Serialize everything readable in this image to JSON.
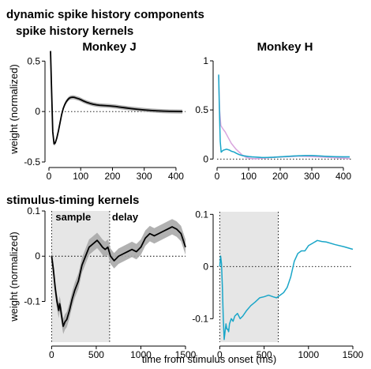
{
  "figure_title": "dynamic spike history components",
  "section_history": "spike history kernels",
  "section_stimulus": "stimulus-timing kernels",
  "ylabel": "weight (normalized)",
  "xlabel": "time from stimulus onset (ms)",
  "colors": {
    "black": "#000000",
    "cyan": "#1aa6c8",
    "pink": "#d9a6de",
    "band": "#a9a9a9",
    "shade": "#e6e6e6"
  },
  "chart_data": [
    {
      "id": "history_J",
      "type": "line",
      "title": "Monkey J",
      "xlim": [
        0,
        430
      ],
      "ylim": [
        -0.5,
        0.62
      ],
      "xticks": [
        0,
        100,
        200,
        300,
        400
      ],
      "yticks": [
        0.5,
        0,
        -0.5
      ],
      "ytick_labels": [
        "0.5",
        "0",
        "-0.5"
      ],
      "zero_line": true,
      "series": [
        {
          "color": "#000000",
          "band": 0.02,
          "x": [
            5,
            8,
            12,
            16,
            20,
            25,
            30,
            35,
            40,
            45,
            50,
            55,
            60,
            65,
            70,
            75,
            80,
            85,
            90,
            95,
            100,
            110,
            120,
            130,
            140,
            150,
            160,
            170,
            180,
            190,
            200,
            210,
            220,
            240,
            260,
            280,
            300,
            320,
            340,
            360,
            380,
            400,
            420
          ],
          "y": [
            0.6,
            0.25,
            -0.2,
            -0.32,
            -0.31,
            -0.26,
            -0.19,
            -0.11,
            -0.03,
            0.03,
            0.07,
            0.1,
            0.12,
            0.135,
            0.14,
            0.142,
            0.14,
            0.135,
            0.13,
            0.125,
            0.118,
            0.103,
            0.09,
            0.08,
            0.072,
            0.066,
            0.062,
            0.06,
            0.058,
            0.056,
            0.053,
            0.05,
            0.045,
            0.037,
            0.029,
            0.022,
            0.016,
            0.011,
            0.007,
            0.004,
            0.002,
            0.001,
            0.0
          ]
        }
      ]
    },
    {
      "id": "history_H",
      "type": "line",
      "title": "Monkey H",
      "xlim": [
        0,
        430
      ],
      "ylim": [
        -0.03,
        1.0
      ],
      "xticks": [
        0,
        100,
        200,
        300,
        400
      ],
      "yticks": [
        1,
        0.5,
        0
      ],
      "ytick_labels": [
        "1",
        "0.5",
        "0"
      ],
      "zero_line": true,
      "series": [
        {
          "color": "#d9a6de",
          "band": 0.008,
          "x": [
            5,
            8,
            12,
            16,
            20,
            25,
            30,
            35,
            40,
            45,
            50,
            60,
            70,
            80,
            90,
            100,
            110,
            120,
            130,
            140,
            150,
            170,
            190,
            210,
            230,
            260,
            300,
            340,
            380,
            420
          ],
          "y": [
            0.85,
            0.5,
            0.34,
            0.32,
            0.3,
            0.28,
            0.25,
            0.22,
            0.19,
            0.16,
            0.14,
            0.1,
            0.07,
            0.04,
            0.02,
            0.01,
            0.005,
            0.003,
            0.005,
            0.008,
            0.01,
            0.015,
            0.02,
            0.022,
            0.025,
            0.03,
            0.025,
            0.02,
            0.012,
            0.005
          ]
        },
        {
          "color": "#1aa6c8",
          "band": 0.006,
          "x": [
            5,
            7,
            10,
            13,
            16,
            20,
            25,
            30,
            35,
            40,
            45,
            50,
            55,
            60,
            70,
            80,
            90,
            100,
            110,
            120,
            130,
            140,
            150,
            160,
            170,
            180,
            190,
            200,
            220,
            240,
            260,
            280,
            300,
            320,
            340,
            360,
            380,
            400,
            420
          ],
          "y": [
            0.86,
            0.55,
            0.18,
            0.07,
            0.08,
            0.09,
            0.095,
            0.1,
            0.095,
            0.09,
            0.08,
            0.075,
            0.07,
            0.06,
            0.045,
            0.035,
            0.03,
            0.025,
            0.022,
            0.02,
            0.018,
            0.016,
            0.015,
            0.016,
            0.017,
            0.018,
            0.02,
            0.022,
            0.026,
            0.03,
            0.033,
            0.035,
            0.035,
            0.032,
            0.028,
            0.025,
            0.023,
            0.022,
            0.022
          ]
        }
      ]
    },
    {
      "id": "stimulus_J",
      "type": "line",
      "xlim": [
        -30,
        1500
      ],
      "ylim": [
        -0.19,
        0.1
      ],
      "xticks": [
        0,
        500,
        1000,
        1500
      ],
      "yticks": [
        0.1,
        0,
        -0.1
      ],
      "ytick_labels": [
        "0.1",
        "0",
        "-0.1"
      ],
      "zero_line": true,
      "shade": [
        0,
        650
      ],
      "vlines": [
        0,
        650
      ],
      "annotations": [
        "sample",
        "delay"
      ],
      "series": [
        {
          "color": "#000000",
          "band": 0.017,
          "x": [
            0,
            20,
            40,
            60,
            80,
            90,
            100,
            110,
            130,
            150,
            170,
            200,
            230,
            260,
            300,
            340,
            380,
            420,
            450,
            480,
            510,
            540,
            570,
            600,
            630,
            660,
            700,
            750,
            800,
            850,
            900,
            950,
            1000,
            1050,
            1100,
            1150,
            1200,
            1250,
            1300,
            1350,
            1400,
            1450,
            1500
          ],
          "y": [
            0.0,
            -0.03,
            -0.07,
            -0.1,
            -0.12,
            -0.105,
            -0.115,
            -0.13,
            -0.155,
            -0.145,
            -0.14,
            -0.12,
            -0.095,
            -0.075,
            -0.055,
            -0.02,
            0.0,
            0.02,
            0.025,
            0.03,
            0.035,
            0.028,
            0.02,
            0.015,
            0.02,
            0.0,
            -0.01,
            0.0,
            0.005,
            0.01,
            0.015,
            0.01,
            0.02,
            0.04,
            0.05,
            0.045,
            0.05,
            0.055,
            0.06,
            0.065,
            0.06,
            0.05,
            0.02
          ]
        }
      ]
    },
    {
      "id": "stimulus_H",
      "type": "line",
      "xlim": [
        -30,
        1500
      ],
      "ylim": [
        -0.145,
        0.105
      ],
      "xticks": [
        0,
        500,
        1000,
        1500
      ],
      "yticks": [
        0.1,
        0,
        -0.1
      ],
      "ytick_labels": [
        "0.1",
        "0",
        "-0.1"
      ],
      "zero_line": true,
      "shade": [
        0,
        660
      ],
      "vlines": [
        0,
        660
      ],
      "series": [
        {
          "color": "#1aa6c8",
          "band": 0,
          "x": [
            0,
            10,
            20,
            30,
            40,
            50,
            60,
            70,
            80,
            90,
            100,
            110,
            130,
            150,
            170,
            200,
            230,
            260,
            300,
            350,
            400,
            450,
            500,
            550,
            600,
            640,
            680,
            720,
            760,
            800,
            840,
            880,
            920,
            960,
            1000,
            1050,
            1100,
            1150,
            1200,
            1300,
            1400,
            1500
          ],
          "y": [
            0.0,
            0.02,
            0.005,
            -0.04,
            -0.1,
            -0.14,
            -0.125,
            -0.11,
            -0.12,
            -0.12,
            -0.125,
            -0.11,
            -0.1,
            -0.105,
            -0.095,
            -0.09,
            -0.1,
            -0.095,
            -0.085,
            -0.075,
            -0.068,
            -0.06,
            -0.058,
            -0.055,
            -0.058,
            -0.06,
            -0.055,
            -0.05,
            -0.04,
            -0.02,
            0.01,
            0.025,
            0.03,
            0.03,
            0.04,
            0.045,
            0.05,
            0.048,
            0.047,
            0.042,
            0.038,
            0.033
          ]
        }
      ]
    }
  ]
}
